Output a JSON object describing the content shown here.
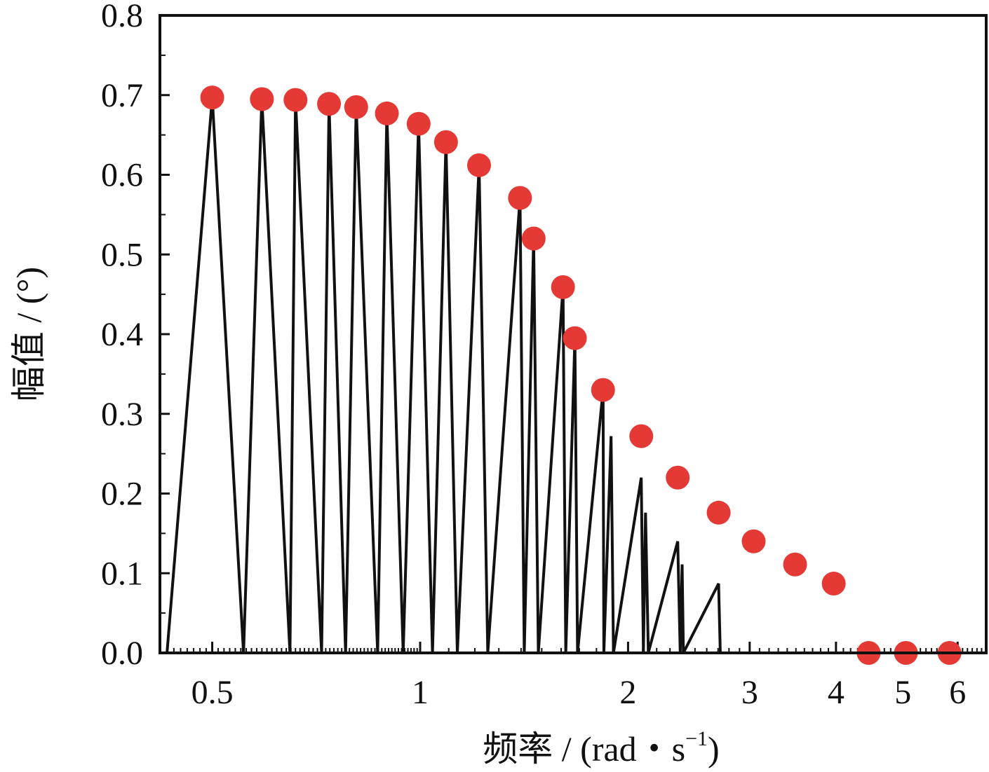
{
  "chart_data": {
    "type": "line",
    "xlabel_main": "频率 / (rad・s",
    "xlabel_sup": "−1",
    "xlabel_close": ")",
    "ylabel": "幅值 / (°)",
    "xscale": "log",
    "xlim": [
      0.42,
      6.6
    ],
    "ylim": [
      0,
      0.8
    ],
    "y_ticks": [
      "0.0",
      "0.1",
      "0.2",
      "0.3",
      "0.4",
      "0.5",
      "0.6",
      "0.7",
      "0.8"
    ],
    "x_ticks": [
      {
        "value": 0.5,
        "label": "0.5"
      },
      {
        "value": 1,
        "label": "1"
      },
      {
        "value": 2,
        "label": "2"
      },
      {
        "value": 3,
        "label": "3"
      },
      {
        "value": 4,
        "label": "4"
      },
      {
        "value": 5,
        "label": "5"
      },
      {
        "value": 6,
        "label": "6"
      }
    ],
    "grid": false,
    "legend": "none",
    "series": [
      {
        "kind": "line",
        "color": "#111111",
        "x": [
          0.43,
          0.5,
          0.555,
          0.59,
          0.648,
          0.66,
          0.72,
          0.738,
          0.78,
          0.808,
          0.868,
          0.895,
          0.945,
          0.995,
          1.042,
          1.09,
          1.132,
          1.217,
          1.253,
          1.395,
          1.415,
          1.46,
          1.483,
          1.61,
          1.625,
          1.675,
          1.69,
          1.84,
          1.845,
          1.89,
          1.905,
          2.09,
          2.105,
          2.12,
          2.14,
          2.36,
          2.38,
          2.395,
          2.405,
          2.705,
          2.72,
          2.74,
          2.75,
          3.04,
          3.05,
          3.08,
          3.09,
          3.49,
          3.505,
          3.53,
          3.54,
          3.97,
          3.985,
          4.01,
          4.02,
          4.46,
          4.47,
          4.49,
          4.5,
          5.05,
          5.06,
          5.08,
          5.09,
          5.84,
          5.85,
          5.87,
          5.88
        ],
        "y": [
          0,
          0.697,
          0,
          0.695,
          0,
          0.694,
          0,
          0.689,
          0,
          0.685,
          0,
          0.677,
          0,
          0.664,
          0,
          0.641,
          0,
          0.612,
          0,
          0.571,
          0,
          0.52,
          0,
          0.459,
          0,
          0.395,
          0,
          0.33,
          0,
          0.272,
          0,
          0.22,
          0,
          0.176,
          0,
          0.14,
          0,
          0.111,
          0,
          0.087,
          0,
          0,
          0,
          0,
          0,
          0,
          0,
          0,
          0,
          0,
          0,
          0,
          0,
          0,
          0,
          0,
          0,
          0,
          0,
          0,
          0,
          0,
          0,
          0,
          0,
          0,
          0
        ]
      },
      {
        "kind": "scatter",
        "color": "#e53935",
        "x": [
          0.5,
          0.59,
          0.66,
          0.738,
          0.808,
          0.895,
          0.995,
          1.09,
          1.217,
          1.395,
          1.46,
          1.61,
          1.675,
          1.84,
          2.09,
          2.36,
          2.705,
          3.04,
          3.49,
          3.97,
          4.46,
          5.05,
          5.84
        ],
        "y": [
          0.697,
          0.695,
          0.694,
          0.689,
          0.685,
          0.677,
          0.664,
          0.641,
          0.612,
          0.571,
          0.52,
          0.459,
          0.395,
          0.33,
          0.272,
          0.22,
          0.176,
          0.14,
          0.111,
          0.087,
          0,
          0,
          0
        ]
      }
    ]
  }
}
